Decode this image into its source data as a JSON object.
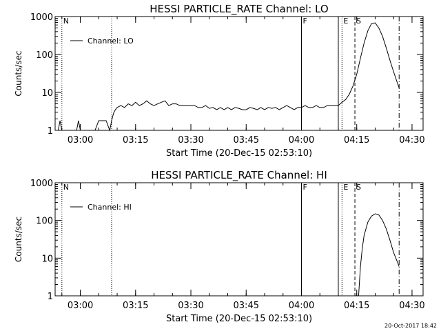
{
  "footer": {
    "timestamp": "20-Oct-2017 18:42"
  },
  "chart_data": [
    {
      "type": "line",
      "title": "HESSI PARTICLE_RATE Channel: LO",
      "xlabel": "Start Time (20-Dec-15 02:53:10)",
      "ylabel": "Counts/sec",
      "y_scale": "log",
      "xlim": [
        "02:53:10",
        "04:33:00"
      ],
      "ylim": [
        1,
        1000
      ],
      "x_ticks": [
        "03:00",
        "03:15",
        "03:30",
        "03:45",
        "04:00",
        "04:15",
        "04:30"
      ],
      "y_ticks": [
        "1",
        "10",
        "100",
        "1000"
      ],
      "legend": {
        "position": "top-left",
        "entries": [
          "Channel: LO"
        ]
      },
      "markers": [
        {
          "time": "02:55:00",
          "label": "N",
          "style": "dotted"
        },
        {
          "time": "03:08:30",
          "label": "",
          "style": "dotted"
        },
        {
          "time": "04:00:00",
          "label": "F",
          "style": "solid"
        },
        {
          "time": "04:10:00",
          "label": "",
          "style": "solid"
        },
        {
          "time": "04:11:00",
          "label": "E",
          "style": "dotted"
        },
        {
          "time": "04:14:30",
          "label": "S",
          "style": "dashed"
        },
        {
          "time": "04:26:30",
          "label": "",
          "style": "dash-dot"
        }
      ],
      "series": [
        {
          "name": "Channel: LO",
          "x": [
            "02:53:10",
            "02:54:00",
            "02:54:30",
            "02:55:00",
            "02:55:30",
            "02:56:00",
            "02:57:00",
            "02:57:30",
            "02:58:00",
            "02:59:00",
            "02:59:30",
            "03:00:00",
            "03:01:00",
            "03:01:30",
            "03:02:00",
            "03:03:00",
            "03:03:30",
            "03:04:00",
            "03:05:00",
            "03:05:30",
            "03:06:00",
            "03:07:00",
            "03:08:00",
            "03:08:30",
            "03:09:00",
            "03:09:30",
            "03:10:00",
            "03:11:00",
            "03:12:00",
            "03:13:00",
            "03:14:00",
            "03:15:00",
            "03:16:00",
            "03:17:00",
            "03:18:00",
            "03:19:00",
            "03:20:00",
            "03:21:00",
            "03:22:00",
            "03:23:00",
            "03:24:00",
            "03:25:00",
            "03:26:00",
            "03:27:00",
            "03:28:00",
            "03:29:00",
            "03:30:00",
            "03:31:00",
            "03:32:00",
            "03:33:00",
            "03:34:00",
            "03:35:00",
            "03:36:00",
            "03:37:00",
            "03:38:00",
            "03:39:00",
            "03:40:00",
            "03:41:00",
            "03:42:00",
            "03:43:00",
            "03:44:00",
            "03:45:00",
            "03:46:00",
            "03:47:00",
            "03:48:00",
            "03:49:00",
            "03:50:00",
            "03:51:00",
            "03:52:00",
            "03:53:00",
            "03:54:00",
            "03:55:00",
            "03:56:00",
            "03:57:00",
            "03:58:00",
            "03:59:00",
            "04:00:00",
            "04:01:00",
            "04:02:00",
            "04:03:00",
            "04:04:00",
            "04:05:00",
            "04:06:00",
            "04:07:00",
            "04:08:00",
            "04:09:00",
            "04:10:00",
            "04:10:30",
            "04:11:00",
            "04:12:00",
            "04:13:00",
            "04:14:00",
            "04:15:00",
            "04:16:00",
            "04:17:00",
            "04:18:00",
            "04:19:00",
            "04:20:00",
            "04:21:00",
            "04:22:00",
            "04:23:00",
            "04:24:00",
            "04:25:00",
            "04:26:00",
            "04:26:30"
          ],
          "y": [
            1,
            1,
            1.8,
            1,
            1,
            1,
            1,
            1,
            1,
            1,
            1.8,
            1,
            1,
            1,
            1,
            1,
            1,
            1,
            1.8,
            1.8,
            1.8,
            1.8,
            1,
            1.8,
            2.8,
            3.5,
            4,
            4.5,
            4,
            5,
            4.5,
            5.5,
            4.5,
            5,
            6,
            5,
            4.5,
            5,
            5.5,
            6,
            4.5,
            5,
            5,
            4.5,
            4.5,
            4.5,
            4.5,
            4.5,
            4,
            4,
            4.5,
            3.8,
            4,
            3.5,
            4,
            3.5,
            4,
            3.5,
            4,
            3.8,
            3.5,
            3.5,
            4,
            3.8,
            3.5,
            4,
            3.5,
            4,
            3.8,
            4,
            3.5,
            4,
            4.5,
            4,
            3.5,
            4,
            4,
            4.5,
            4,
            4,
            4.5,
            4,
            4,
            4.5,
            4.5,
            4.5,
            4.5,
            5,
            5.5,
            6.5,
            9,
            15,
            30,
            80,
            200,
            420,
            650,
            680,
            500,
            300,
            150,
            70,
            35,
            18,
            13
          ]
        }
      ]
    },
    {
      "type": "line",
      "title": "HESSI PARTICLE_RATE Channel: HI",
      "xlabel": "Start Time (20-Dec-15 02:53:10)",
      "ylabel": "Counts/sec",
      "y_scale": "log",
      "xlim": [
        "02:53:10",
        "04:33:00"
      ],
      "ylim": [
        1,
        1000
      ],
      "x_ticks": [
        "03:00",
        "03:15",
        "03:30",
        "03:45",
        "04:00",
        "04:15",
        "04:30"
      ],
      "y_ticks": [
        "1",
        "10",
        "100",
        "1000"
      ],
      "legend": {
        "position": "top-left",
        "entries": [
          "Channel: HI"
        ]
      },
      "markers": [
        {
          "time": "02:55:00",
          "label": "N",
          "style": "dotted"
        },
        {
          "time": "03:08:30",
          "label": "",
          "style": "dotted"
        },
        {
          "time": "04:00:00",
          "label": "F",
          "style": "solid"
        },
        {
          "time": "04:10:00",
          "label": "",
          "style": "solid"
        },
        {
          "time": "04:11:00",
          "label": "E",
          "style": "dotted"
        },
        {
          "time": "04:14:30",
          "label": "S",
          "style": "dashed"
        },
        {
          "time": "04:26:30",
          "label": "",
          "style": "dash-dot"
        }
      ],
      "series": [
        {
          "name": "Channel: HI",
          "x": [
            "04:15:30",
            "04:16:00",
            "04:16:30",
            "04:17:00",
            "04:18:00",
            "04:19:00",
            "04:20:00",
            "04:21:00",
            "04:22:00",
            "04:23:00",
            "04:24:00",
            "04:25:00",
            "04:26:00",
            "04:26:30"
          ],
          "y": [
            1,
            6,
            18,
            40,
            90,
            130,
            150,
            140,
            100,
            60,
            30,
            14,
            8,
            6
          ]
        }
      ]
    }
  ]
}
